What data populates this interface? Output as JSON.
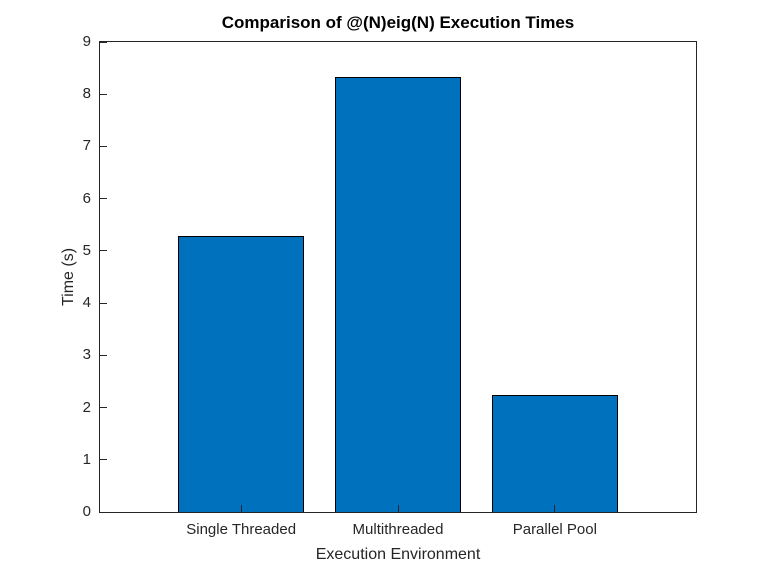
{
  "chart_data": {
    "type": "bar",
    "title": "Comparison of @(N)eig(N) Execution Times",
    "xlabel": "Execution Environment",
    "ylabel": "Time (s)",
    "categories": [
      "Single Threaded",
      "Multithreaded",
      "Parallel Pool"
    ],
    "values": [
      5.28,
      8.33,
      2.25
    ],
    "ylim": [
      0,
      9
    ],
    "ytick_values": [
      0,
      1,
      2,
      3,
      4,
      5,
      6,
      7,
      8,
      9
    ],
    "xlim": [
      0.1,
      3.9
    ],
    "bar_width_units": 0.8,
    "grid": "off",
    "legend": "none",
    "colors": {
      "bar_face": "#0072BD",
      "bar_edge": "#000000",
      "axis": "#262626",
      "tick_label": "#262626",
      "title": "#000000",
      "background": "#FFFFFF"
    }
  }
}
